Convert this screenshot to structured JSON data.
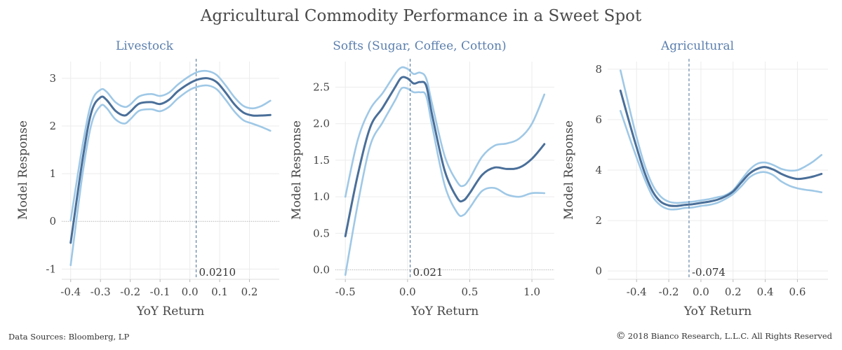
{
  "title": "Agricultural Commodity Performance in a Sweet Spot",
  "footer": {
    "sources": "Data Sources: Bloomberg, LP",
    "copyright_symbol": "©",
    "copyright": "2018 Bianco Research, L.L.C. All Rights Reserved"
  },
  "colors": {
    "fit_line": "#4a6f99",
    "band_line": "#9fc8e6",
    "panel_title": "#5b7fae",
    "grid": "#ececec",
    "axis_text": "#444444",
    "ref_line": "#4a6f99"
  },
  "chart_data": [
    {
      "type": "line",
      "title": "Livestock",
      "xlabel": "YoY Return",
      "ylabel": "Model Response",
      "xlim": [
        -0.43,
        0.3
      ],
      "ylim": [
        -1.2,
        3.35
      ],
      "xticks": [
        -0.4,
        -0.3,
        -0.2,
        -0.1,
        0.0,
        0.1,
        0.2
      ],
      "xtick_labels": [
        "-0.4",
        "-0.3",
        "-0.2",
        "-0.1",
        "0.0",
        "0.1",
        "0.2"
      ],
      "yticks": [
        -1,
        0,
        1,
        2,
        3
      ],
      "ytick_labels": [
        "-1",
        "0",
        "1",
        "2",
        "3"
      ],
      "vline": {
        "x": 0.021,
        "label": "0.0210"
      },
      "zero_line": true,
      "grid": true,
      "series": [
        {
          "role": "upper",
          "x": [
            -0.4,
            -0.36,
            -0.33,
            -0.3,
            -0.28,
            -0.25,
            -0.22,
            -0.2,
            -0.17,
            -0.13,
            -0.1,
            -0.07,
            -0.04,
            0.0,
            0.03,
            0.06,
            0.09,
            0.12,
            0.15,
            0.18,
            0.21,
            0.24,
            0.27
          ],
          "y": [
            0.02,
            1.6,
            2.5,
            2.76,
            2.72,
            2.5,
            2.4,
            2.45,
            2.62,
            2.67,
            2.63,
            2.7,
            2.87,
            3.05,
            3.14,
            3.15,
            3.07,
            2.85,
            2.6,
            2.42,
            2.37,
            2.42,
            2.53
          ]
        },
        {
          "role": "fit",
          "x": [
            -0.4,
            -0.36,
            -0.33,
            -0.3,
            -0.28,
            -0.25,
            -0.22,
            -0.2,
            -0.17,
            -0.13,
            -0.1,
            -0.07,
            -0.04,
            0.0,
            0.03,
            0.06,
            0.09,
            0.12,
            0.15,
            0.18,
            0.21,
            0.24,
            0.27
          ],
          "y": [
            -0.45,
            1.3,
            2.3,
            2.6,
            2.55,
            2.32,
            2.22,
            2.3,
            2.47,
            2.5,
            2.46,
            2.55,
            2.73,
            2.9,
            2.98,
            3.0,
            2.92,
            2.7,
            2.45,
            2.28,
            2.22,
            2.22,
            2.23
          ]
        },
        {
          "role": "lower",
          "x": [
            -0.4,
            -0.36,
            -0.33,
            -0.3,
            -0.28,
            -0.25,
            -0.22,
            -0.2,
            -0.17,
            -0.13,
            -0.1,
            -0.07,
            -0.04,
            0.0,
            0.03,
            0.06,
            0.09,
            0.12,
            0.15,
            0.18,
            0.21,
            0.24,
            0.27
          ],
          "y": [
            -0.92,
            1.0,
            2.05,
            2.42,
            2.38,
            2.14,
            2.05,
            2.14,
            2.32,
            2.35,
            2.31,
            2.4,
            2.58,
            2.76,
            2.83,
            2.85,
            2.77,
            2.55,
            2.3,
            2.12,
            2.05,
            1.98,
            1.9
          ]
        }
      ]
    },
    {
      "type": "line",
      "title": "Softs (Sugar, Coffee, Cotton)",
      "xlabel": "YoY Return",
      "ylabel": "Model Response",
      "xlim": [
        -0.58,
        1.18
      ],
      "ylim": [
        -0.12,
        2.85
      ],
      "xticks": [
        -0.5,
        0.0,
        0.5,
        1.0
      ],
      "xtick_labels": [
        "-0.5",
        "0.0",
        "0.5",
        "1.0"
      ],
      "yticks": [
        0.0,
        0.5,
        1.0,
        1.5,
        2.0,
        2.5
      ],
      "ytick_labels": [
        "0.0",
        "0.5",
        "1.0",
        "1.5",
        "2.0",
        "2.5"
      ],
      "vline": {
        "x": 0.021,
        "label": "0.021"
      },
      "zero_line": true,
      "grid": true,
      "series": [
        {
          "role": "upper",
          "x": [
            -0.5,
            -0.4,
            -0.3,
            -0.2,
            -0.1,
            -0.05,
            0.0,
            0.05,
            0.1,
            0.15,
            0.2,
            0.3,
            0.4,
            0.45,
            0.5,
            0.6,
            0.7,
            0.8,
            0.9,
            1.0,
            1.1
          ],
          "y": [
            1.0,
            1.78,
            2.2,
            2.42,
            2.68,
            2.77,
            2.75,
            2.68,
            2.7,
            2.62,
            2.25,
            1.55,
            1.2,
            1.15,
            1.25,
            1.55,
            1.7,
            1.73,
            1.8,
            2.0,
            2.4
          ]
        },
        {
          "role": "fit",
          "x": [
            -0.5,
            -0.4,
            -0.3,
            -0.2,
            -0.1,
            -0.05,
            0.0,
            0.05,
            0.1,
            0.15,
            0.2,
            0.3,
            0.4,
            0.45,
            0.5,
            0.6,
            0.7,
            0.8,
            0.9,
            1.0,
            1.1
          ],
          "y": [
            0.46,
            1.3,
            1.95,
            2.22,
            2.5,
            2.63,
            2.62,
            2.55,
            2.57,
            2.52,
            2.1,
            1.35,
            0.98,
            0.95,
            1.05,
            1.3,
            1.4,
            1.38,
            1.4,
            1.52,
            1.72
          ]
        },
        {
          "role": "lower",
          "x": [
            -0.5,
            -0.4,
            -0.3,
            -0.2,
            -0.1,
            -0.05,
            0.0,
            0.05,
            0.1,
            0.15,
            0.2,
            0.3,
            0.4,
            0.45,
            0.5,
            0.6,
            0.7,
            0.8,
            0.9,
            1.0,
            1.1
          ],
          "y": [
            -0.07,
            0.9,
            1.7,
            2.02,
            2.32,
            2.48,
            2.48,
            2.43,
            2.43,
            2.38,
            1.95,
            1.15,
            0.78,
            0.75,
            0.85,
            1.08,
            1.12,
            1.03,
            1.0,
            1.05,
            1.05
          ]
        }
      ]
    },
    {
      "type": "line",
      "title": "Agricultural",
      "xlabel": "YoY Return",
      "ylabel": "Model Response",
      "xlim": [
        -0.58,
        0.79
      ],
      "ylim": [
        -0.3,
        8.3
      ],
      "xticks": [
        -0.4,
        -0.2,
        0.0,
        0.2,
        0.4,
        0.6
      ],
      "xtick_labels": [
        "-0.4",
        "-0.2",
        "0.0",
        "0.2",
        "0.4",
        "0.6"
      ],
      "yticks": [
        0,
        2,
        4,
        6,
        8
      ],
      "ytick_labels": [
        "0",
        "2",
        "4",
        "6",
        "8"
      ],
      "vline": {
        "x": -0.074,
        "label": "-0.074"
      },
      "zero_line": false,
      "grid": true,
      "series": [
        {
          "role": "upper",
          "x": [
            -0.5,
            -0.45,
            -0.4,
            -0.35,
            -0.3,
            -0.25,
            -0.2,
            -0.15,
            -0.1,
            -0.05,
            0.0,
            0.05,
            0.1,
            0.15,
            0.2,
            0.25,
            0.3,
            0.35,
            0.4,
            0.45,
            0.5,
            0.55,
            0.6,
            0.65,
            0.7,
            0.75
          ],
          "y": [
            7.95,
            6.6,
            5.3,
            4.2,
            3.4,
            2.95,
            2.75,
            2.7,
            2.72,
            2.75,
            2.8,
            2.85,
            2.92,
            3.0,
            3.2,
            3.6,
            4.0,
            4.25,
            4.3,
            4.2,
            4.05,
            3.98,
            4.0,
            4.15,
            4.35,
            4.6
          ]
        },
        {
          "role": "fit",
          "x": [
            -0.5,
            -0.45,
            -0.4,
            -0.35,
            -0.3,
            -0.25,
            -0.2,
            -0.15,
            -0.1,
            -0.05,
            0.0,
            0.05,
            0.1,
            0.15,
            0.2,
            0.25,
            0.3,
            0.35,
            0.4,
            0.45,
            0.5,
            0.55,
            0.6,
            0.65,
            0.7,
            0.75
          ],
          "y": [
            7.15,
            6.0,
            4.9,
            3.9,
            3.15,
            2.75,
            2.6,
            2.58,
            2.62,
            2.65,
            2.7,
            2.75,
            2.82,
            2.95,
            3.15,
            3.5,
            3.85,
            4.05,
            4.12,
            4.02,
            3.85,
            3.72,
            3.65,
            3.68,
            3.75,
            3.85
          ]
        },
        {
          "role": "lower",
          "x": [
            -0.5,
            -0.45,
            -0.4,
            -0.35,
            -0.3,
            -0.25,
            -0.2,
            -0.15,
            -0.1,
            -0.05,
            0.0,
            0.05,
            0.1,
            0.15,
            0.2,
            0.25,
            0.3,
            0.35,
            0.4,
            0.45,
            0.5,
            0.55,
            0.6,
            0.65,
            0.7,
            0.75
          ],
          "y": [
            6.35,
            5.4,
            4.5,
            3.65,
            2.95,
            2.6,
            2.45,
            2.45,
            2.5,
            2.52,
            2.58,
            2.62,
            2.7,
            2.85,
            3.05,
            3.35,
            3.7,
            3.88,
            3.92,
            3.8,
            3.55,
            3.38,
            3.28,
            3.22,
            3.18,
            3.12
          ]
        }
      ]
    }
  ]
}
